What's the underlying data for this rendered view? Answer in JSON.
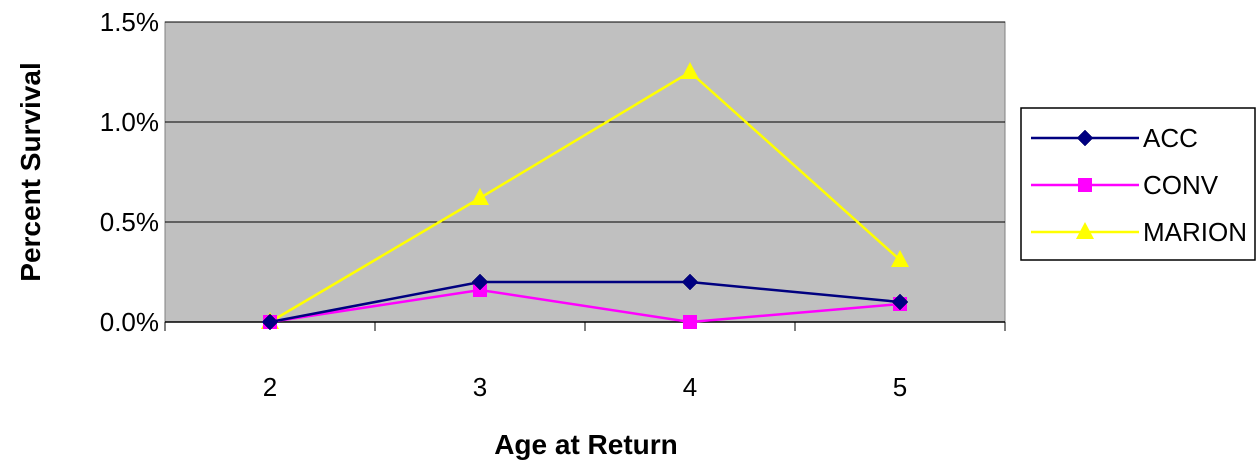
{
  "chart_data": {
    "type": "line",
    "x": [
      "2",
      "3",
      "4",
      "5"
    ],
    "xlabel": "Age at Return",
    "ylabel": "Percent Survival",
    "ylim": [
      0,
      0.015
    ],
    "yticks": [
      "0.0%",
      "0.5%",
      "1.0%",
      "1.5%"
    ],
    "grid": true,
    "legend_position": "right",
    "plot_background": "#c0c0c0",
    "series": [
      {
        "name": "ACC",
        "values": [
          0.0,
          0.002,
          0.002,
          0.001
        ],
        "color": "#000080",
        "marker": "diamond"
      },
      {
        "name": "CONV",
        "values": [
          0.0,
          0.0016,
          0.0,
          0.0009
        ],
        "color": "#ff00ff",
        "marker": "square"
      },
      {
        "name": "MARION",
        "values": [
          0.0,
          0.0062,
          0.0125,
          0.0031
        ],
        "color": "#ffff00",
        "marker": "triangle"
      }
    ]
  }
}
